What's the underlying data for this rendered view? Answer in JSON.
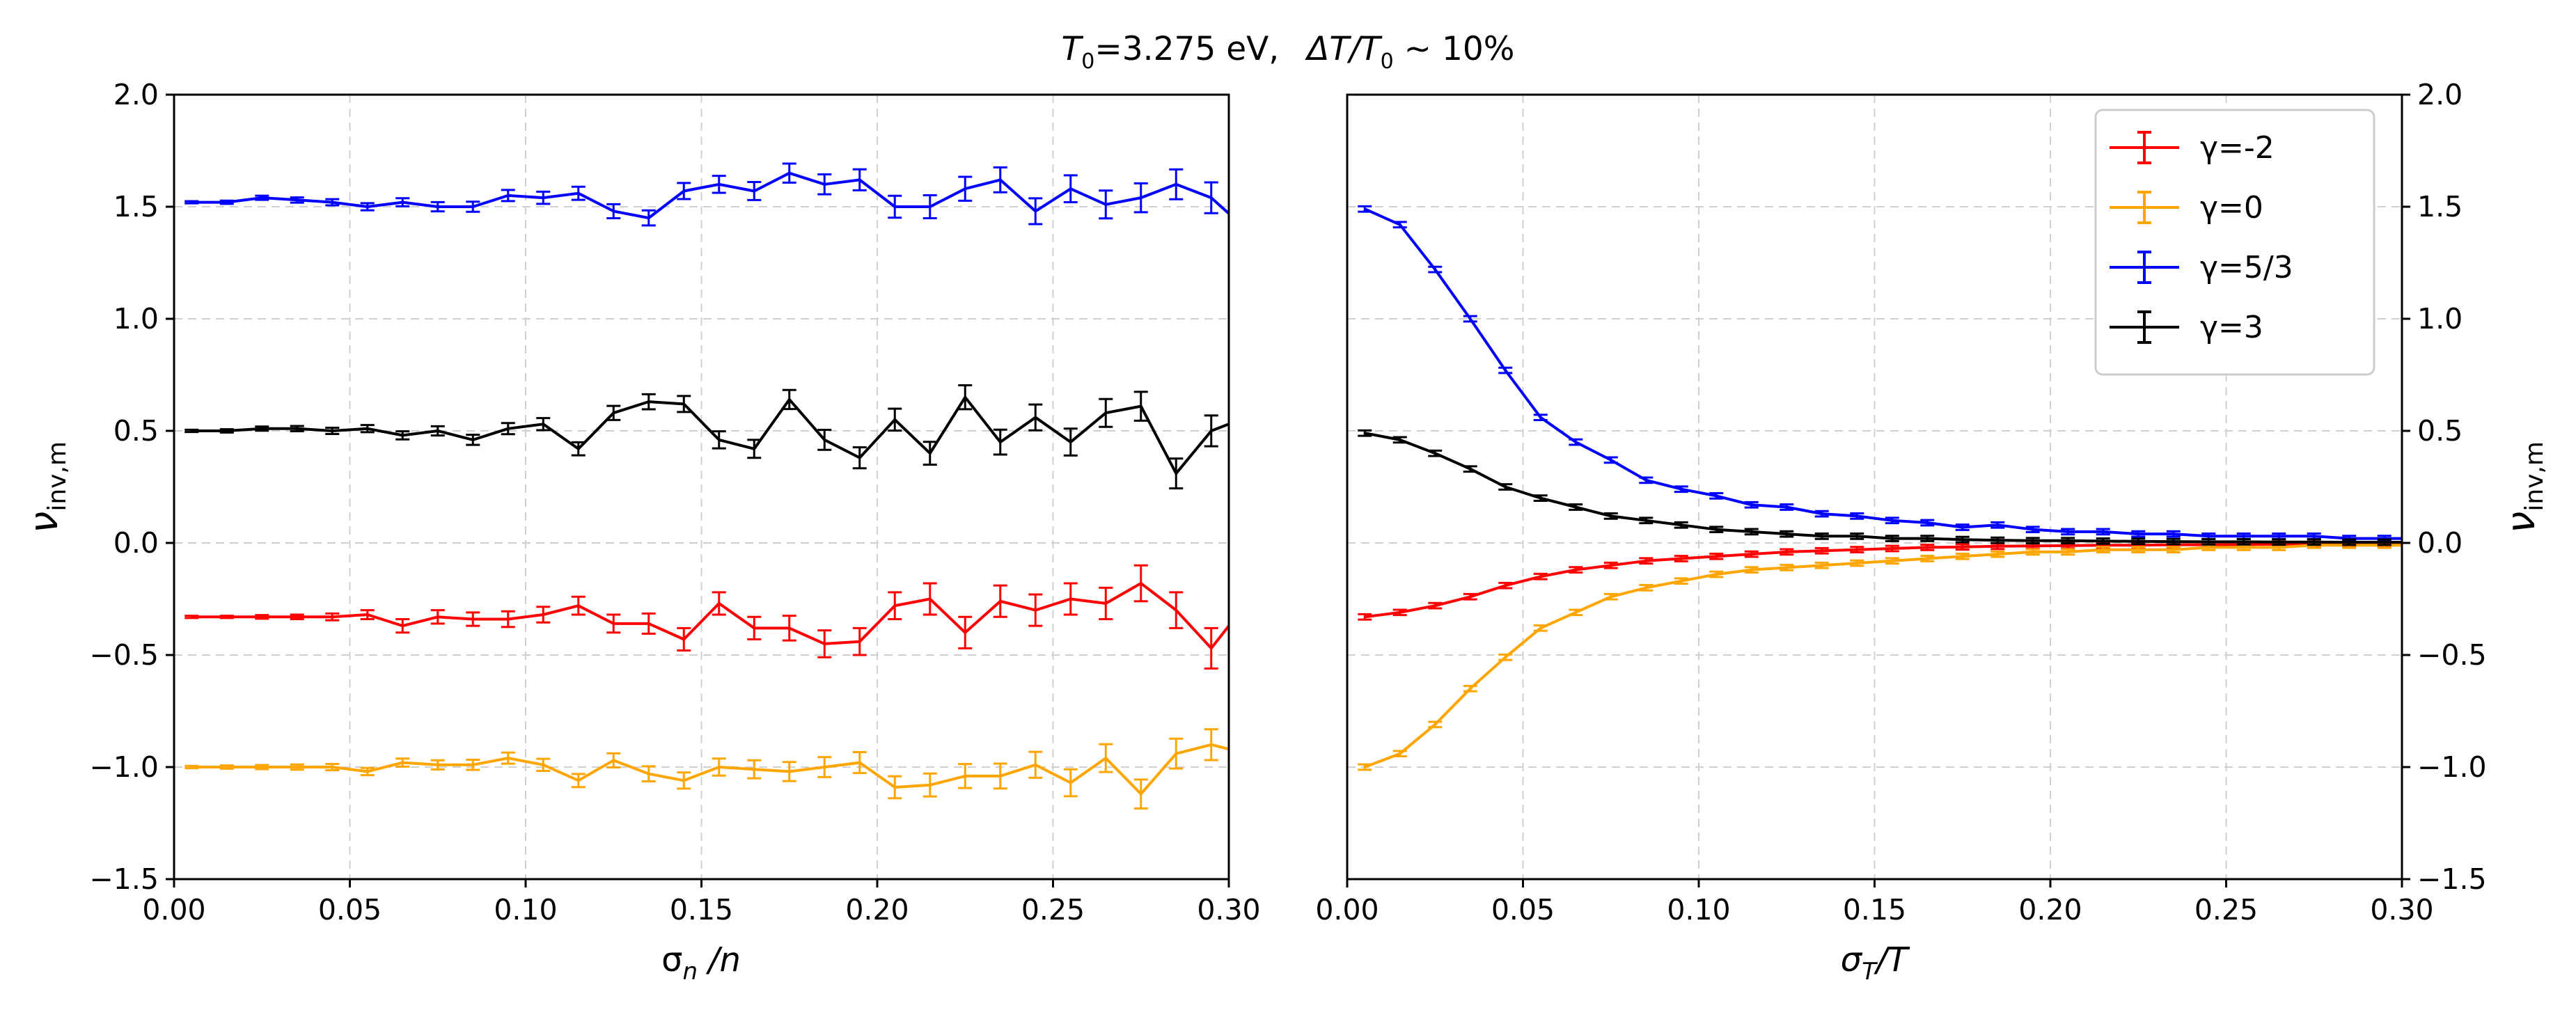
{
  "figure": {
    "title": "T₀=3.275 eV,   ΔT/T₀ ~ 10%",
    "title_parts": {
      "t_sym": "T",
      "t_sub": "0",
      "t_val": "=3.275 eV,",
      "dt_sym": "ΔT/T",
      "dt_sub": "0",
      "dt_val": " ~ 10%"
    }
  },
  "colors": {
    "gamma_m2": "#ff0000",
    "gamma_0": "#ffa500",
    "gamma_53": "#0000ff",
    "gamma_3": "#000000",
    "grid": "#d0d0d0",
    "axis": "#000000"
  },
  "chart_data": [
    {
      "type": "line",
      "panel": "left",
      "xlabel": "σn/n",
      "xlabel_parts": {
        "main": "σ",
        "sub": "n",
        "rest": " /n"
      },
      "ylabel": "νinv,m",
      "ylabel_parts": {
        "main": "ν",
        "sub": "inv,m"
      },
      "xlim": [
        0.0,
        0.3
      ],
      "ylim": [
        -1.5,
        2.0
      ],
      "xticks": [
        "0.00",
        "0.05",
        "0.10",
        "0.15",
        "0.20",
        "0.25",
        "0.30"
      ],
      "yticks": [
        "−1.5",
        "−1.0",
        "−0.5",
        "0.0",
        "0.5",
        "1.0",
        "1.5",
        "2.0"
      ],
      "grid": true,
      "x": [
        0.005,
        0.015,
        0.025,
        0.035,
        0.045,
        0.055,
        0.065,
        0.075,
        0.085,
        0.095,
        0.105,
        0.115,
        0.125,
        0.135,
        0.145,
        0.155,
        0.165,
        0.175,
        0.185,
        0.195,
        0.205,
        0.215,
        0.225,
        0.235,
        0.245,
        0.255,
        0.265,
        0.275,
        0.285,
        0.295,
        0.3
      ],
      "series": [
        {
          "name": "γ=-2",
          "color_key": "gamma_m2",
          "values": [
            -0.33,
            -0.33,
            -0.33,
            -0.33,
            -0.33,
            -0.32,
            -0.37,
            -0.33,
            -0.34,
            -0.34,
            -0.32,
            -0.28,
            -0.36,
            -0.36,
            -0.43,
            -0.27,
            -0.38,
            -0.38,
            -0.45,
            -0.44,
            -0.28,
            -0.25,
            -0.4,
            -0.26,
            -0.3,
            -0.25,
            -0.27,
            -0.18,
            -0.3,
            -0.47,
            -0.37
          ],
          "errors": [
            0.005,
            0.005,
            0.008,
            0.01,
            0.015,
            0.02,
            0.03,
            0.03,
            0.03,
            0.035,
            0.035,
            0.04,
            0.04,
            0.045,
            0.05,
            0.05,
            0.05,
            0.055,
            0.06,
            0.06,
            0.06,
            0.07,
            0.07,
            0.07,
            0.07,
            0.07,
            0.07,
            0.08,
            0.08,
            0.09,
            0.09
          ]
        },
        {
          "name": "γ=0",
          "color_key": "gamma_0",
          "values": [
            -1.0,
            -1.0,
            -1.0,
            -1.0,
            -1.0,
            -1.02,
            -0.98,
            -0.99,
            -0.99,
            -0.96,
            -0.99,
            -1.06,
            -0.97,
            -1.03,
            -1.06,
            -1.0,
            -1.01,
            -1.02,
            -1.0,
            -0.98,
            -1.09,
            -1.08,
            -1.04,
            -1.04,
            -0.99,
            -1.07,
            -0.96,
            -1.12,
            -0.94,
            -0.9,
            -0.92
          ]
        },
        {
          "name": "γ=5/3",
          "color_key": "gamma_53",
          "values": [
            1.52,
            1.52,
            1.54,
            1.53,
            1.52,
            1.5,
            1.52,
            1.5,
            1.5,
            1.55,
            1.54,
            1.56,
            1.48,
            1.45,
            1.57,
            1.6,
            1.57,
            1.65,
            1.6,
            1.62,
            1.5,
            1.5,
            1.58,
            1.62,
            1.48,
            1.58,
            1.51,
            1.54,
            1.6,
            1.54,
            1.47
          ]
        },
        {
          "name": "γ=3",
          "color_key": "gamma_3",
          "values": [
            0.5,
            0.5,
            0.51,
            0.51,
            0.5,
            0.51,
            0.48,
            0.5,
            0.46,
            0.51,
            0.53,
            0.42,
            0.58,
            0.63,
            0.62,
            0.46,
            0.42,
            0.64,
            0.46,
            0.38,
            0.55,
            0.4,
            0.65,
            0.45,
            0.56,
            0.45,
            0.58,
            0.61,
            0.31,
            0.5,
            0.53
          ]
        }
      ]
    },
    {
      "type": "line",
      "panel": "right",
      "xlabel": "σT/T",
      "xlabel_parts": {
        "main": "σ",
        "sub": "T",
        "rest": "/T"
      },
      "ylabel": "νinv,m",
      "ylabel_parts": {
        "main": "ν",
        "sub": "inv,m"
      },
      "xlim": [
        0.0,
        0.3
      ],
      "ylim": [
        -1.5,
        2.0
      ],
      "xticks": [
        "0.00",
        "0.05",
        "0.10",
        "0.15",
        "0.20",
        "0.25",
        "0.30"
      ],
      "yticks": [
        "−1.5",
        "−1.0",
        "−0.5",
        "0.0",
        "0.5",
        "1.0",
        "1.5",
        "2.0"
      ],
      "grid": true,
      "legend_position": "top-right",
      "x": [
        0.005,
        0.015,
        0.025,
        0.035,
        0.045,
        0.055,
        0.065,
        0.075,
        0.085,
        0.095,
        0.105,
        0.115,
        0.125,
        0.135,
        0.145,
        0.155,
        0.165,
        0.175,
        0.185,
        0.195,
        0.205,
        0.215,
        0.225,
        0.235,
        0.245,
        0.255,
        0.265,
        0.275,
        0.285,
        0.295,
        0.3
      ],
      "series": [
        {
          "name": "γ=-2",
          "color_key": "gamma_m2",
          "values": [
            -0.33,
            -0.31,
            -0.28,
            -0.24,
            -0.19,
            -0.15,
            -0.12,
            -0.1,
            -0.08,
            -0.07,
            -0.06,
            -0.05,
            -0.04,
            -0.035,
            -0.03,
            -0.025,
            -0.02,
            -0.018,
            -0.015,
            -0.013,
            -0.012,
            -0.01,
            -0.01,
            -0.008,
            -0.008,
            -0.007,
            -0.006,
            -0.006,
            -0.005,
            -0.005,
            -0.005
          ]
        },
        {
          "name": "γ=0",
          "color_key": "gamma_0",
          "values": [
            -1.0,
            -0.94,
            -0.81,
            -0.65,
            -0.51,
            -0.38,
            -0.31,
            -0.24,
            -0.2,
            -0.17,
            -0.14,
            -0.12,
            -0.11,
            -0.1,
            -0.09,
            -0.08,
            -0.07,
            -0.06,
            -0.05,
            -0.04,
            -0.04,
            -0.03,
            -0.03,
            -0.03,
            -0.02,
            -0.02,
            -0.02,
            -0.01,
            -0.01,
            -0.01,
            -0.01
          ]
        },
        {
          "name": "γ=5/3",
          "color_key": "gamma_53",
          "values": [
            1.49,
            1.42,
            1.22,
            1.0,
            0.77,
            0.56,
            0.45,
            0.37,
            0.28,
            0.24,
            0.21,
            0.17,
            0.16,
            0.13,
            0.12,
            0.1,
            0.09,
            0.07,
            0.08,
            0.06,
            0.05,
            0.05,
            0.04,
            0.04,
            0.03,
            0.03,
            0.03,
            0.03,
            0.02,
            0.02,
            0.02
          ]
        },
        {
          "name": "γ=3",
          "color_key": "gamma_3",
          "values": [
            0.49,
            0.46,
            0.4,
            0.33,
            0.25,
            0.2,
            0.16,
            0.12,
            0.1,
            0.08,
            0.06,
            0.05,
            0.04,
            0.03,
            0.03,
            0.02,
            0.02,
            0.015,
            0.012,
            0.01,
            0.01,
            0.008,
            0.007,
            0.006,
            0.005,
            0.005,
            0.004,
            0.004,
            0.003,
            0.003,
            0.003
          ]
        }
      ]
    }
  ]
}
